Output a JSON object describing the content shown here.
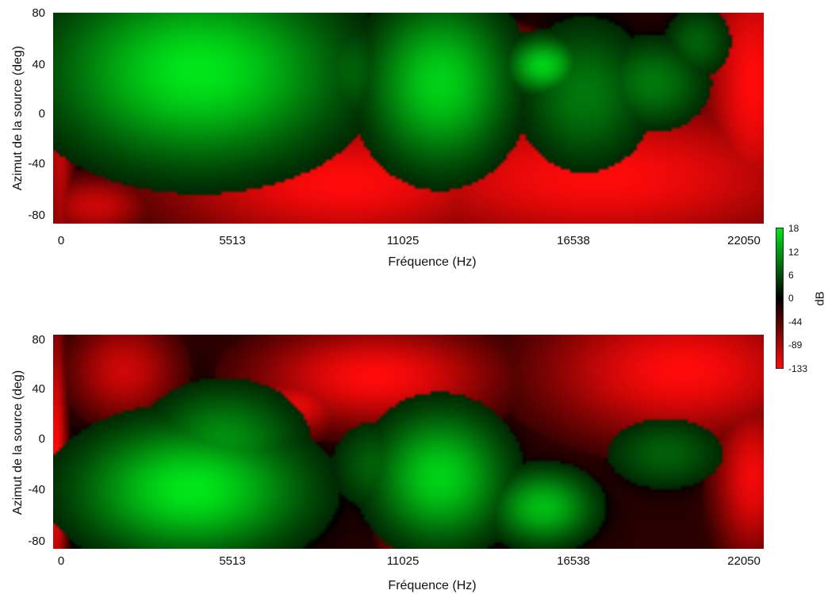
{
  "chart_data": [
    {
      "type": "heatmap",
      "xlabel": "Fréquence (Hz)",
      "ylabel": "Azimut de la source (deg)",
      "x_ticks": [
        "0",
        "5513",
        "11025",
        "16538",
        "22050"
      ],
      "y_ticks": [
        "80",
        "40",
        "0",
        "-40",
        "-80"
      ],
      "xlim": [
        0,
        22050
      ],
      "ylim": [
        -90,
        90
      ],
      "blobs": [
        {
          "x": 4500,
          "y": 40,
          "sx": 2800,
          "sy": 50,
          "v": 18
        },
        {
          "x": 2500,
          "y": 40,
          "sx": 1500,
          "sy": 30,
          "v": 10
        },
        {
          "x": 9200,
          "y": 40,
          "sx": 900,
          "sy": 30,
          "v": 6
        },
        {
          "x": 12000,
          "y": 30,
          "sx": 1400,
          "sy": 45,
          "v": 16
        },
        {
          "x": 15200,
          "y": 45,
          "sx": 700,
          "sy": 15,
          "v": 16
        },
        {
          "x": 16500,
          "y": 20,
          "sx": 1300,
          "sy": 40,
          "v": 8
        },
        {
          "x": 18600,
          "y": 30,
          "sx": 1100,
          "sy": 25,
          "v": 8
        },
        {
          "x": 20000,
          "y": 65,
          "sx": 700,
          "sy": 20,
          "v": 6
        },
        {
          "x": 1800,
          "y": -20,
          "sx": 1200,
          "sy": 20,
          "v": 4
        },
        {
          "x": 9000,
          "y": -55,
          "sx": 3500,
          "sy": 35,
          "v": -133
        },
        {
          "x": 17000,
          "y": -50,
          "sx": 4500,
          "sy": 40,
          "v": -133
        },
        {
          "x": 21700,
          "y": 30,
          "sx": 900,
          "sy": 70,
          "v": -133
        },
        {
          "x": 12600,
          "y": 72,
          "sx": 1100,
          "sy": 6,
          "v": -133
        },
        {
          "x": 17700,
          "y": 28,
          "sx": 600,
          "sy": 10,
          "v": -120
        },
        {
          "x": 1300,
          "y": -75,
          "sx": 1000,
          "sy": 15,
          "v": -89
        },
        {
          "x": 200,
          "y": 0,
          "sx": 250,
          "sy": 90,
          "v": -89
        }
      ],
      "base": -30
    },
    {
      "type": "heatmap",
      "xlabel": "Fréquence (Hz)",
      "ylabel": "Azimut de la source (deg)",
      "x_ticks": [
        "0",
        "5513",
        "11025",
        "16538",
        "22050"
      ],
      "y_ticks": [
        "80",
        "40",
        "0",
        "-40",
        "-80"
      ],
      "xlim": [
        0,
        22050
      ],
      "ylim": [
        -90,
        90
      ],
      "blobs": [
        {
          "x": 4300,
          "y": -40,
          "sx": 2200,
          "sy": 35,
          "v": 18
        },
        {
          "x": 5300,
          "y": 0,
          "sx": 1500,
          "sy": 30,
          "v": 10
        },
        {
          "x": 2000,
          "y": -40,
          "sx": 1500,
          "sy": 25,
          "v": 6
        },
        {
          "x": 12000,
          "y": -30,
          "sx": 1300,
          "sy": 35,
          "v": 16
        },
        {
          "x": 15200,
          "y": -55,
          "sx": 1000,
          "sy": 20,
          "v": 14
        },
        {
          "x": 10000,
          "y": -20,
          "sx": 900,
          "sy": 25,
          "v": 6
        },
        {
          "x": 19000,
          "y": -10,
          "sx": 1200,
          "sy": 20,
          "v": 6
        },
        {
          "x": 4000,
          "y": 40,
          "sx": 1200,
          "sy": 25,
          "v": 2
        },
        {
          "x": 19500,
          "y": 60,
          "sx": 2600,
          "sy": 35,
          "v": -133
        },
        {
          "x": 10000,
          "y": 55,
          "sx": 2200,
          "sy": 25,
          "v": -133
        },
        {
          "x": 7500,
          "y": 30,
          "sx": 900,
          "sy": 15,
          "v": -110
        },
        {
          "x": 21700,
          "y": -30,
          "sx": 700,
          "sy": 40,
          "v": -120
        },
        {
          "x": 11000,
          "y": -65,
          "sx": 500,
          "sy": 20,
          "v": -110
        },
        {
          "x": 100,
          "y": -20,
          "sx": 180,
          "sy": 70,
          "v": -133
        },
        {
          "x": 2200,
          "y": 60,
          "sx": 1000,
          "sy": 25,
          "v": -89
        }
      ],
      "base": -30
    }
  ],
  "colorbar": {
    "label": "dB",
    "ticks": [
      "18",
      "12",
      "6",
      "0",
      "-44",
      "-89",
      "-133"
    ],
    "colors": [
      "#00e61a",
      "#000000",
      "#ff0a0a"
    ]
  }
}
